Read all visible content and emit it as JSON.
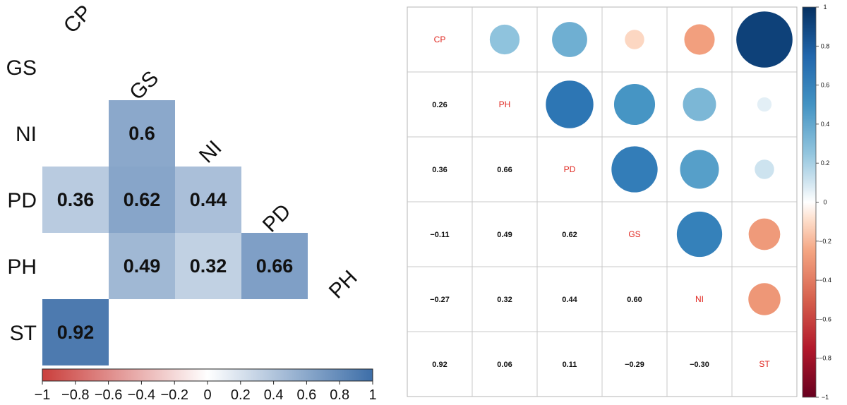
{
  "chart_data": [
    {
      "type": "heatmap",
      "title": "",
      "variables": [
        "CP",
        "GS",
        "NI",
        "PD",
        "PH",
        "ST"
      ],
      "row_labels": [
        "GS",
        "NI",
        "PD",
        "PH",
        "ST"
      ],
      "column_labels": [
        "CP",
        "GS",
        "NI",
        "PD",
        "PH"
      ],
      "cells": [
        {
          "row": "NI",
          "col": "GS",
          "value": 0.6,
          "label": "0.6"
        },
        {
          "row": "PD",
          "col": "CP",
          "value": 0.36,
          "label": "0.36"
        },
        {
          "row": "PD",
          "col": "GS",
          "value": 0.62,
          "label": "0.62"
        },
        {
          "row": "PD",
          "col": "NI",
          "value": 0.44,
          "label": "0.44"
        },
        {
          "row": "PH",
          "col": "GS",
          "value": 0.49,
          "label": "0.49"
        },
        {
          "row": "PH",
          "col": "NI",
          "value": 0.32,
          "label": "0.32"
        },
        {
          "row": "PH",
          "col": "PD",
          "value": 0.66,
          "label": "0.66"
        },
        {
          "row": "ST",
          "col": "CP",
          "value": 0.92,
          "label": "0.92"
        }
      ],
      "colorbar": {
        "orientation": "horizontal",
        "range": [
          -1,
          1
        ],
        "ticks": [
          "−1",
          "−0.8",
          "−0.6",
          "−0.4",
          "−0.2",
          "0",
          "0.2",
          "0.4",
          "0.6",
          "0.8",
          "1"
        ],
        "low_color": "#ca3f3c",
        "mid_color": "#ffffff",
        "high_color": "#3d6ea8"
      }
    },
    {
      "type": "heatmap",
      "title": "",
      "variables": [
        "CP",
        "PH",
        "PD",
        "GS",
        "NI",
        "ST"
      ],
      "matrix": [
        [
          1.0,
          0.26,
          0.36,
          -0.11,
          -0.27,
          0.92
        ],
        [
          0.26,
          1.0,
          0.66,
          0.49,
          0.32,
          0.06
        ],
        [
          0.36,
          0.66,
          1.0,
          0.62,
          0.44,
          0.11
        ],
        [
          -0.11,
          0.49,
          0.62,
          1.0,
          0.6,
          -0.29
        ],
        [
          -0.27,
          0.32,
          0.44,
          0.6,
          1.0,
          -0.3
        ],
        [
          0.92,
          0.06,
          0.11,
          -0.29,
          -0.3,
          1.0
        ]
      ],
      "lower_labels": [
        [
          "0.26"
        ],
        [
          "0.36",
          "0.66"
        ],
        [
          "−0.11",
          "0.49",
          "0.62"
        ],
        [
          "−0.27",
          "0.32",
          "0.44",
          "0.60"
        ],
        [
          "0.92",
          "0.06",
          "0.11",
          "−0.29",
          "−0.30"
        ]
      ],
      "upper_glyph": "circle",
      "diagonal_label_color": "#e0261f",
      "colorbar": {
        "orientation": "vertical",
        "range": [
          -1,
          1
        ],
        "ticks": [
          "1",
          "0.8",
          "0.6",
          "0.4",
          "0.2",
          "0",
          "−0.2",
          "−0.4",
          "−0.6",
          "−0.8",
          "−1"
        ],
        "low_color": "#67001f",
        "high_color": "#053061"
      }
    }
  ]
}
